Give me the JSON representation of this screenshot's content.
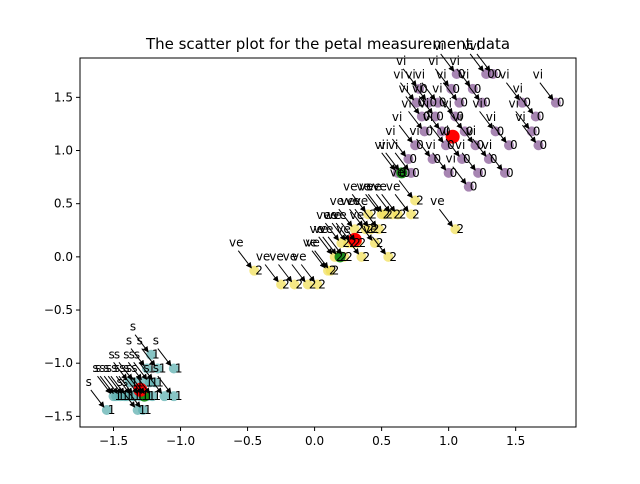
{
  "chart_data": {
    "type": "scatter",
    "title": "The scatter plot for the petal measurement data",
    "xlabel": "",
    "ylabel": "",
    "xlim": [
      -1.75,
      1.95
    ],
    "ylim": [
      -1.6,
      1.87
    ],
    "xticks": [
      -1.5,
      -1.0,
      -0.5,
      0.0,
      0.5,
      1.0,
      1.5
    ],
    "yticks": [
      -1.5,
      -1.0,
      -0.5,
      0.0,
      0.5,
      1.0,
      1.5
    ],
    "xtick_labels": [
      "−1.5",
      "−1.0",
      "−0.5",
      "0.0",
      "0.5",
      "1.0",
      "1.5"
    ],
    "ytick_labels": [
      "−1.5",
      "−1.0",
      "−0.5",
      "0.0",
      "0.5",
      "1.0",
      "1.5"
    ],
    "grid": false,
    "point_colors": {
      "cluster_0": "#8a5c98",
      "cluster_1": "#5fb0b0",
      "cluster_2": "#f2e05c",
      "centroid": "#ff0000",
      "highlight": "#1a8c1a"
    },
    "series": [
      {
        "cluster": 1,
        "species_label": "s",
        "cluster_label": "1",
        "points": [
          [
            -1.55,
            -1.44
          ],
          [
            -1.5,
            -1.31
          ],
          [
            -1.48,
            -1.31
          ],
          [
            -1.45,
            -1.31
          ],
          [
            -1.42,
            -1.31
          ],
          [
            -1.4,
            -1.31
          ],
          [
            -1.38,
            -1.18
          ],
          [
            -1.36,
            -1.31
          ],
          [
            -1.34,
            -1.31
          ],
          [
            -1.34,
            -1.18
          ],
          [
            -1.32,
            -1.44
          ],
          [
            -1.3,
            -1.31
          ],
          [
            -1.28,
            -1.44
          ],
          [
            -1.27,
            -1.31
          ],
          [
            -1.27,
            -1.18
          ],
          [
            -1.25,
            -1.31
          ],
          [
            -1.25,
            -1.05
          ],
          [
            -1.23,
            -1.18
          ],
          [
            -1.22,
            -0.92
          ],
          [
            -1.21,
            -1.31
          ],
          [
            -1.19,
            -1.18
          ],
          [
            -1.17,
            -1.05
          ],
          [
            -1.12,
            -1.31
          ],
          [
            -1.05,
            -1.31
          ],
          [
            -1.05,
            -1.05
          ]
        ]
      },
      {
        "cluster": 2,
        "species_label": "ve",
        "cluster_label": "2",
        "points": [
          [
            -0.45,
            -0.13
          ],
          [
            -0.25,
            -0.26
          ],
          [
            -0.15,
            -0.26
          ],
          [
            -0.05,
            -0.26
          ],
          [
            0.02,
            -0.26
          ],
          [
            0.1,
            -0.13
          ],
          [
            0.12,
            -0.13
          ],
          [
            0.15,
            0.0
          ],
          [
            0.18,
            0.0
          ],
          [
            0.2,
            0.13
          ],
          [
            0.22,
            0.0
          ],
          [
            0.25,
            0.13
          ],
          [
            0.28,
            0.13
          ],
          [
            0.3,
            0.26
          ],
          [
            0.32,
            0.13
          ],
          [
            0.35,
            0.0
          ],
          [
            0.38,
            0.26
          ],
          [
            0.4,
            0.4
          ],
          [
            0.42,
            0.26
          ],
          [
            0.45,
            0.13
          ],
          [
            0.48,
            0.26
          ],
          [
            0.5,
            0.4
          ],
          [
            0.52,
            0.4
          ],
          [
            0.55,
            0.0
          ],
          [
            0.58,
            0.4
          ],
          [
            0.62,
            0.4
          ],
          [
            0.75,
            0.53
          ],
          [
            1.05,
            0.26
          ],
          [
            0.72,
            0.4
          ]
        ]
      },
      {
        "cluster": 0,
        "species_label": "vi",
        "cluster_label": "0",
        "points": [
          [
            0.62,
            0.79
          ],
          [
            0.65,
            0.79
          ],
          [
            0.7,
            0.92
          ],
          [
            0.72,
            0.79
          ],
          [
            0.75,
            1.05
          ],
          [
            0.76,
            1.45
          ],
          [
            0.78,
            1.58
          ],
          [
            0.8,
            1.32
          ],
          [
            0.82,
            1.18
          ],
          [
            0.85,
            1.45
          ],
          [
            0.88,
            0.92
          ],
          [
            0.9,
            1.32
          ],
          [
            0.92,
            1.45
          ],
          [
            0.95,
            1.18
          ],
          [
            0.98,
            1.05
          ],
          [
            1.0,
            0.79
          ],
          [
            1.02,
            1.58
          ],
          [
            1.05,
            1.32
          ],
          [
            1.06,
            1.72
          ],
          [
            1.08,
            1.45
          ],
          [
            1.1,
            0.92
          ],
          [
            1.12,
            1.18
          ],
          [
            1.15,
            0.66
          ],
          [
            1.18,
            1.58
          ],
          [
            1.2,
            1.05
          ],
          [
            1.22,
            0.79
          ],
          [
            1.25,
            1.45
          ],
          [
            1.28,
            1.72
          ],
          [
            1.3,
            0.92
          ],
          [
            1.33,
            1.72
          ],
          [
            1.35,
            1.18
          ],
          [
            1.42,
            0.79
          ],
          [
            1.45,
            1.05
          ],
          [
            1.55,
            1.45
          ],
          [
            1.62,
            1.18
          ],
          [
            1.65,
            1.32
          ],
          [
            1.67,
            1.05
          ],
          [
            1.8,
            1.45
          ]
        ]
      }
    ],
    "centroids": [
      [
        -1.3,
        -1.25
      ],
      [
        0.3,
        0.16
      ],
      [
        1.03,
        1.13
      ]
    ],
    "highlight_points": [
      [
        -1.27,
        -1.31
      ],
      [
        0.19,
        0.0
      ],
      [
        0.65,
        0.79
      ]
    ]
  }
}
